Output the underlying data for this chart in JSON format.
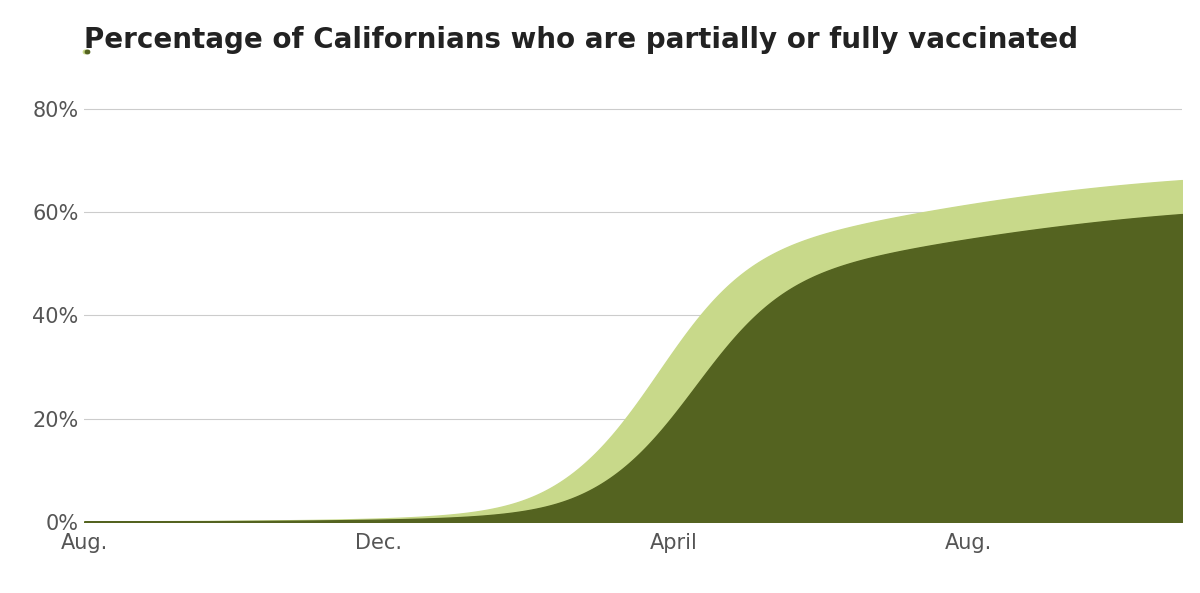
{
  "title_text": "Percentage of Californians who are partially or fully vaccinated",
  "partial_color": "#c8d98a",
  "full_color": "#546320",
  "background_color": "#ffffff",
  "yticks": [
    0,
    20,
    40,
    60,
    80
  ],
  "ytick_labels": [
    "0%",
    "20%",
    "40%",
    "60%",
    "80%"
  ],
  "xtick_labels": [
    "Aug.",
    "Dec.",
    "April",
    "Aug."
  ],
  "xtick_positions": [
    0,
    4,
    8,
    12
  ],
  "xlim": [
    0,
    14.9
  ],
  "ylim": [
    0,
    85
  ],
  "final_partial": 68.5,
  "final_full": 62.2,
  "grid_color": "#cccccc",
  "tick_color": "#555555",
  "title_fontsize": 20,
  "tick_fontsize": 15,
  "underline_partial_color": "#c8d98a",
  "underline_full_color": "#546320",
  "underline_lw": 3.5
}
